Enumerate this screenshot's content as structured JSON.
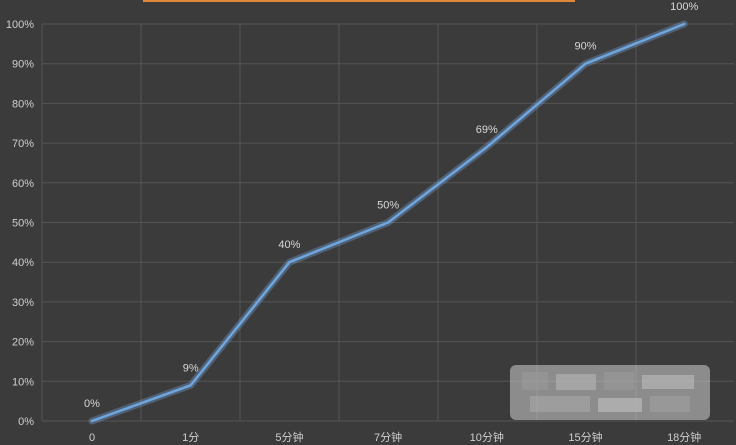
{
  "colors": {
    "background": "#3b3b3b",
    "grid": "#555555",
    "line": "#6fa6de",
    "top_bar": "#e0883a",
    "text": "#cfcfcf"
  },
  "chart_data": {
    "type": "line",
    "title": "",
    "xlabel": "",
    "ylabel": "",
    "categories": [
      "0",
      "1分",
      "5分钟",
      "7分钟",
      "10分钟",
      "15分钟",
      "18分钟"
    ],
    "series": [
      {
        "values": [
          0,
          9,
          40,
          50,
          69,
          90,
          100
        ],
        "labels": [
          "0%",
          "9%",
          "40%",
          "50%",
          "69%",
          "90%",
          "100%"
        ]
      }
    ],
    "ylim": [
      0,
      100
    ],
    "yticks": [
      "0%",
      "10%",
      "20%",
      "30%",
      "40%",
      "50%",
      "60%",
      "70%",
      "80%",
      "90%",
      "100%"
    ],
    "grid": true,
    "legend": "none"
  }
}
